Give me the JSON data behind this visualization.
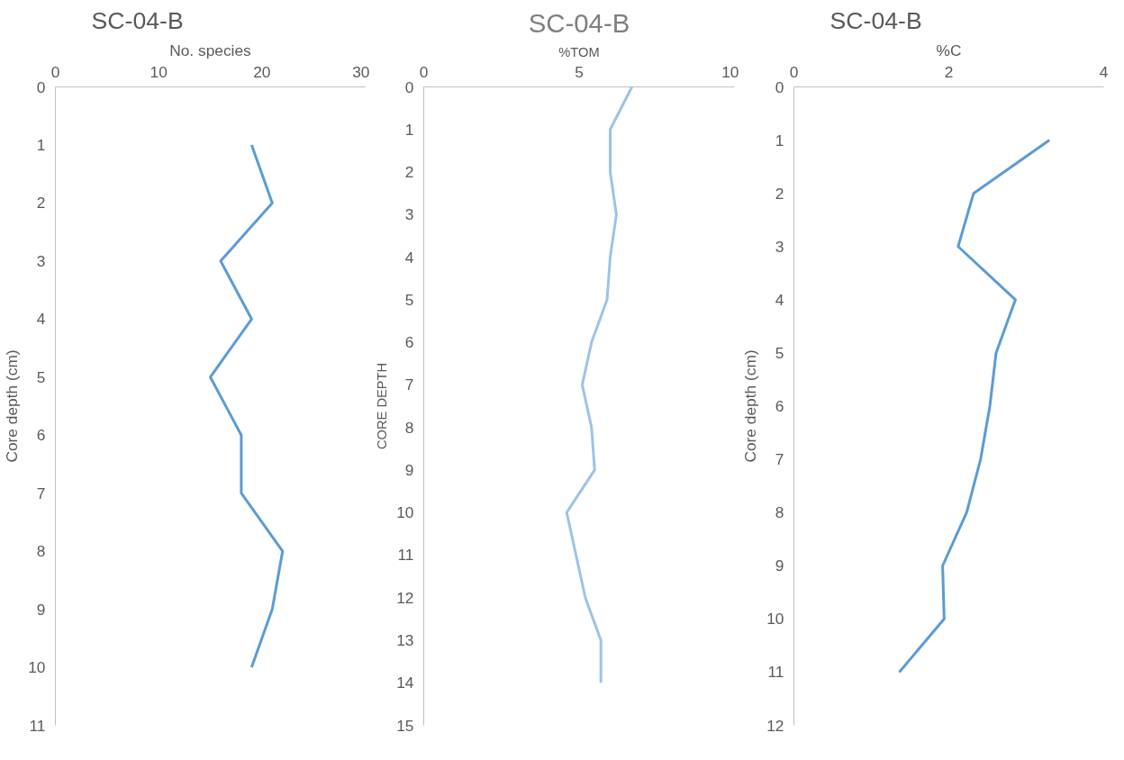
{
  "chart_data": [
    {
      "type": "line",
      "title": "SC-04-B",
      "xlabel": "No. species",
      "ylabel": "Core depth (cm)",
      "xlim": [
        0,
        30
      ],
      "xticks": [
        0,
        10,
        20,
        30
      ],
      "ylim": [
        11,
        0
      ],
      "yticks": [
        0,
        1,
        2,
        3,
        4,
        5,
        6,
        7,
        8,
        9,
        10,
        11
      ],
      "grid": false,
      "series": [
        {
          "color": "#5b9bd5",
          "x": [
            19,
            21,
            16,
            19,
            15,
            18,
            18,
            22,
            21,
            19
          ],
          "values": [
            1,
            2,
            3,
            4,
            5,
            6,
            7,
            8,
            9,
            10
          ]
        }
      ]
    },
    {
      "type": "line",
      "title": "SC-04-B",
      "xlabel": "%TOM",
      "ylabel": "CORE DEPTH",
      "xlim": [
        0,
        10
      ],
      "xticks": [
        0,
        5,
        10
      ],
      "ylim": [
        15,
        0
      ],
      "yticks": [
        0,
        1,
        2,
        3,
        4,
        5,
        6,
        7,
        8,
        9,
        10,
        11,
        12,
        13,
        14,
        15
      ],
      "grid": false,
      "series": [
        {
          "color": "#9dc3e6",
          "x": [
            6.7,
            6.0,
            6.0,
            6.2,
            6.0,
            5.9,
            5.4,
            5.1,
            5.4,
            5.5,
            4.6,
            4.9,
            5.2,
            5.7,
            5.7
          ],
          "values": [
            0,
            1,
            2,
            3,
            4,
            5,
            6,
            7,
            8,
            9,
            10,
            11,
            12,
            13,
            14
          ]
        }
      ]
    },
    {
      "type": "line",
      "title": "SC-04-B",
      "xlabel": "%C",
      "ylabel": "Core depth (cm)",
      "xlim": [
        0,
        4
      ],
      "xticks": [
        0,
        2,
        4
      ],
      "ylim": [
        12,
        0
      ],
      "yticks": [
        0,
        1,
        2,
        3,
        4,
        5,
        6,
        7,
        8,
        9,
        10,
        11,
        12
      ],
      "grid": false,
      "series": [
        {
          "color": "#5b9bd5",
          "x": [
            3.3,
            2.32,
            2.12,
            2.86,
            2.61,
            2.53,
            2.41,
            2.23,
            1.92,
            1.94,
            1.36
          ],
          "values": [
            1,
            2,
            3,
            4,
            5,
            6,
            7,
            8,
            9,
            10,
            11
          ]
        }
      ]
    }
  ]
}
